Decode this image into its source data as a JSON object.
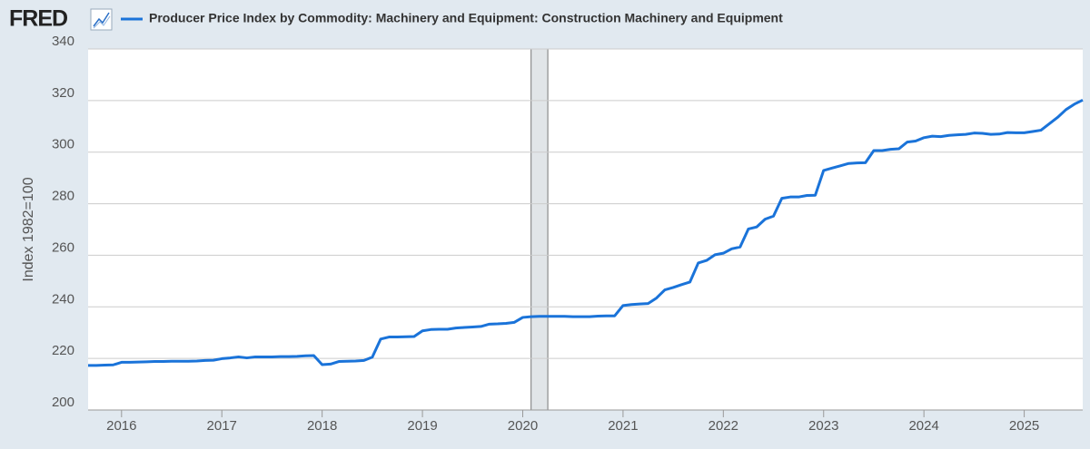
{
  "logo": "FRED",
  "chart_data": {
    "type": "line",
    "y_label": "Index 1982=100",
    "x": [
      "2015-09",
      "2015-10",
      "2015-11",
      "2015-12",
      "2016-01",
      "2016-02",
      "2016-03",
      "2016-04",
      "2016-05",
      "2016-06",
      "2016-07",
      "2016-08",
      "2016-09",
      "2016-10",
      "2016-11",
      "2016-12",
      "2017-01",
      "2017-02",
      "2017-03",
      "2017-04",
      "2017-05",
      "2017-06",
      "2017-07",
      "2017-08",
      "2017-09",
      "2017-10",
      "2017-11",
      "2017-12",
      "2018-01",
      "2018-02",
      "2018-03",
      "2018-04",
      "2018-05",
      "2018-06",
      "2018-07",
      "2018-08",
      "2018-09",
      "2018-10",
      "2018-11",
      "2018-12",
      "2019-01",
      "2019-02",
      "2019-03",
      "2019-04",
      "2019-05",
      "2019-06",
      "2019-07",
      "2019-08",
      "2019-09",
      "2019-10",
      "2019-11",
      "2019-12",
      "2020-01",
      "2020-02",
      "2020-03",
      "2020-04",
      "2020-05",
      "2020-06",
      "2020-07",
      "2020-08",
      "2020-09",
      "2020-10",
      "2020-11",
      "2020-12",
      "2021-01",
      "2021-02",
      "2021-03",
      "2021-04",
      "2021-05",
      "2021-06",
      "2021-07",
      "2021-08",
      "2021-09",
      "2021-10",
      "2021-11",
      "2021-12",
      "2022-01",
      "2022-02",
      "2022-03",
      "2022-04",
      "2022-05",
      "2022-06",
      "2022-07",
      "2022-08",
      "2022-09",
      "2022-10",
      "2022-11",
      "2022-12",
      "2023-01",
      "2023-02",
      "2023-03",
      "2023-04",
      "2023-05",
      "2023-06",
      "2023-07",
      "2023-08",
      "2023-09",
      "2023-10",
      "2023-11",
      "2023-12",
      "2024-01",
      "2024-02",
      "2024-03",
      "2024-04",
      "2024-05",
      "2024-06",
      "2024-07",
      "2024-08",
      "2024-09",
      "2024-10",
      "2024-11",
      "2024-12",
      "2025-01",
      "2025-02",
      "2025-03",
      "2025-04",
      "2025-05",
      "2025-06",
      "2025-07",
      "2025-08"
    ],
    "series": [
      {
        "name": "Producer Price Index by Commodity: Machinery and Equipment: Construction Machinery and Equipment",
        "color": "#1a73d9",
        "values": [
          217.3,
          217.3,
          217.4,
          217.5,
          218.5,
          218.5,
          218.6,
          218.7,
          218.8,
          218.8,
          218.9,
          218.9,
          218.9,
          219.0,
          219.2,
          219.3,
          219.9,
          220.2,
          220.6,
          220.2,
          220.6,
          220.6,
          220.6,
          220.7,
          220.7,
          220.8,
          221.0,
          221.1,
          217.6,
          217.8,
          218.8,
          218.9,
          219.0,
          219.2,
          220.5,
          227.5,
          228.3,
          228.3,
          228.4,
          228.5,
          230.7,
          231.2,
          231.3,
          231.3,
          231.8,
          232.0,
          232.2,
          232.4,
          233.3,
          233.4,
          233.6,
          234.0,
          235.9,
          236.2,
          236.3,
          236.3,
          236.3,
          236.3,
          236.2,
          236.2,
          236.2,
          236.4,
          236.5,
          236.5,
          240.5,
          240.9,
          241.1,
          241.3,
          243.4,
          246.6,
          247.5,
          248.6,
          249.6,
          257.0,
          258.0,
          260.2,
          260.8,
          262.5,
          263.2,
          270.2,
          271.0,
          274.0,
          275.2,
          282.1,
          282.6,
          282.6,
          283.2,
          283.3,
          292.9,
          293.8,
          294.7,
          295.6,
          295.8,
          295.9,
          300.6,
          300.6,
          301.1,
          301.3,
          303.9,
          304.3,
          305.6,
          306.2,
          306.0,
          306.5,
          306.7,
          306.9,
          307.4,
          307.3,
          306.9,
          307.0,
          307.6,
          307.5,
          307.5,
          308.0,
          308.5,
          311.0,
          313.5,
          316.5,
          318.6,
          320.2
        ]
      }
    ],
    "xlim": [
      "2015-09",
      "2025-08"
    ],
    "xticks": [
      2016,
      2017,
      2018,
      2019,
      2020,
      2021,
      2022,
      2023,
      2024,
      2025
    ],
    "ylim": [
      200,
      340
    ],
    "yticks": [
      200,
      220,
      240,
      260,
      280,
      300,
      320,
      340
    ],
    "grid": true,
    "recessions": [
      {
        "start": "2020-02",
        "end": "2020-04"
      }
    ]
  }
}
